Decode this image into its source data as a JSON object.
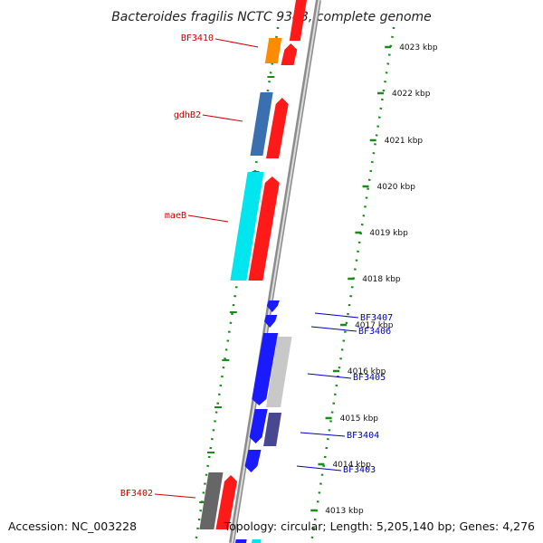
{
  "title": "Bacteroides fragilis NCTC 9343, complete genome",
  "footer": {
    "accession": "Accession: NC_003228",
    "topology": "Topology: circular; Length: 5,205,140 bp; Genes: 4,276"
  },
  "colors": {
    "dotted_line": "#1a8a1a",
    "backbone": "#8c8c8c",
    "forward_label": "#cc0000",
    "reverse_label": "#0000bb"
  },
  "ticks": [
    {
      "label": "4023 kbp"
    },
    {
      "label": "4022 kbp"
    },
    {
      "label": "4021 kbp"
    },
    {
      "label": "4020 kbp"
    },
    {
      "label": "4019 kbp"
    },
    {
      "label": "4018 kbp"
    },
    {
      "label": "4017 kbp"
    },
    {
      "label": "4016 kbp"
    },
    {
      "label": "4015 kbp"
    },
    {
      "label": "4014 kbp"
    },
    {
      "label": "4013 kbp"
    }
  ],
  "genes": [
    {
      "label": "BF3410",
      "strand": "forward"
    },
    {
      "label": "gdhB2",
      "strand": "forward"
    },
    {
      "label": "maeB",
      "strand": "forward"
    },
    {
      "label": "BF3407",
      "strand": "reverse"
    },
    {
      "label": "BF3406",
      "strand": "reverse"
    },
    {
      "label": "BF3405",
      "strand": "reverse"
    },
    {
      "label": "BF3404",
      "strand": "reverse"
    },
    {
      "label": "BF3403",
      "strand": "reverse"
    },
    {
      "label": "BF3402",
      "strand": "forward"
    }
  ]
}
